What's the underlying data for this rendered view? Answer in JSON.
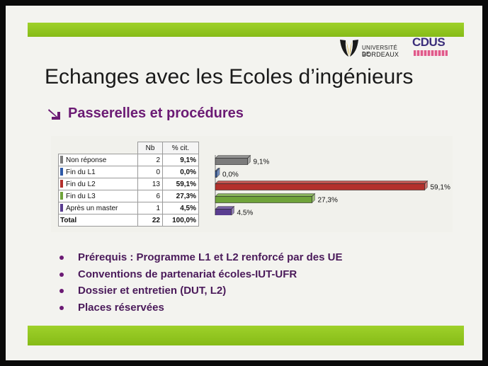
{
  "logos": {
    "universite_line1": "UNIVERSITÉ DE",
    "universite_line2": "BORDEAUX",
    "cdus": "CDUS"
  },
  "title": "Echanges avec les Ecoles d’ingénieurs",
  "subtitle": "Passerelles et procédures",
  "colors": {
    "accent_green": "#8fc31f",
    "title_purple": "#6b1a74",
    "bullet_text": "#4a1a5a"
  },
  "chart_data": {
    "type": "bar",
    "orientation": "horizontal",
    "columns": [
      "Nb",
      "% cit."
    ],
    "categories": [
      "Non réponse",
      "Fin du L1",
      "Fin du L2",
      "Fin du L3",
      "Après un master"
    ],
    "counts": [
      2,
      0,
      13,
      6,
      1
    ],
    "pct_labels": [
      "9,1%",
      "0,0%",
      "59,1%",
      "27,3%",
      "4,5%"
    ],
    "values": [
      9.1,
      0.0,
      59.1,
      27.3,
      4.5
    ],
    "colors": [
      "#7b7b7b",
      "#2f5aa8",
      "#b3302c",
      "#6fa33a",
      "#5a3d90"
    ],
    "total_label": "Total",
    "total_count": "22",
    "total_pct": "100,0%",
    "xlim": [
      0,
      60
    ]
  },
  "bullets": [
    "Prérequis : Programme L1 et L2 renforcé par des UE",
    "Conventions de partenariat écoles-IUT-UFR",
    "Dossier et entretien (DUT, L2)",
    "Places réservées"
  ]
}
